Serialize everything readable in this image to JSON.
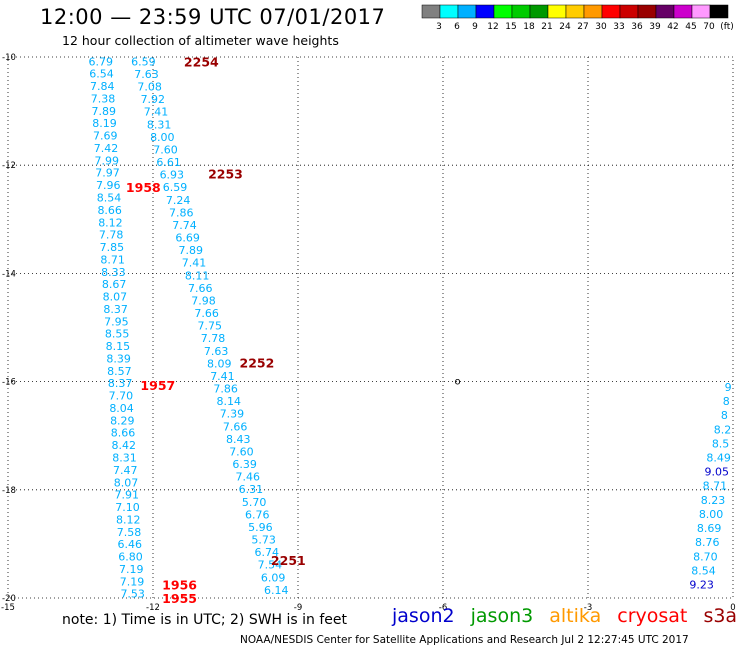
{
  "header": {
    "title": "12:00 — 23:59 UTC 07/01/2017",
    "subtitle": "12 hour collection of altimeter wave heights"
  },
  "footer": {
    "note": "note: 1) Time is in UTC; 2) SWH is in feet",
    "credit": "NOAA/NESDIS Center for Satellite Applications and Research   Jul  2 12:27:45 UTC 2017"
  },
  "satellites": [
    {
      "name": "jason2",
      "color": "#0000cc"
    },
    {
      "name": "jason3",
      "color": "#009900"
    },
    {
      "name": "altika",
      "color": "#ff9900"
    },
    {
      "name": "cryosat",
      "color": "#ff0000"
    },
    {
      "name": "s3a",
      "color": "#990000"
    }
  ],
  "colorbar": {
    "labels": [
      "3",
      "6",
      "9",
      "12",
      "15",
      "18",
      "21",
      "24",
      "27",
      "30",
      "33",
      "36",
      "39",
      "42",
      "45",
      "70",
      "(ft)"
    ],
    "colors": [
      "#808080",
      "#00ffff",
      "#00b0ff",
      "#0000ff",
      "#00ff00",
      "#00cc00",
      "#009900",
      "#ffff00",
      "#ffcc00",
      "#ff9900",
      "#ff0000",
      "#cc0000",
      "#990000",
      "#660066",
      "#cc00cc",
      "#ff99ff",
      "#000000"
    ]
  },
  "chart_data": {
    "type": "scatter",
    "xlim": [
      -15,
      0
    ],
    "ylim": [
      -20,
      -10
    ],
    "xticks": [
      -15,
      -12,
      -9,
      -6,
      -3,
      0
    ],
    "yticks": [
      -10,
      -12,
      -14,
      -16,
      -18,
      -20
    ],
    "grid": "dotted",
    "extra_marker": {
      "x": -5.7,
      "y": -16.0,
      "text": "o"
    },
    "time_labels": [
      {
        "text": "2254",
        "x": -11.0,
        "y": -10.08,
        "color": "#990000"
      },
      {
        "text": "2253",
        "x": -10.5,
        "y": -12.15,
        "color": "#990000"
      },
      {
        "text": "1958",
        "x": -12.2,
        "y": -12.4,
        "color": "#ff0000"
      },
      {
        "text": "2252",
        "x": -9.85,
        "y": -15.65,
        "color": "#990000"
      },
      {
        "text": "1957",
        "x": -11.9,
        "y": -16.06,
        "color": "#ff0000"
      },
      {
        "text": "2251",
        "x": -9.2,
        "y": -19.3,
        "color": "#990000"
      },
      {
        "text": "1956",
        "x": -11.45,
        "y": -19.75,
        "color": "#ff0000"
      },
      {
        "text": "1955",
        "x": -11.45,
        "y": -20.0,
        "color": "#ff0000"
      }
    ],
    "series": [
      {
        "name": "cryosat",
        "color": "#00b0ff",
        "x0": -13.08,
        "y0": -10.08,
        "x1": -12.42,
        "y1": -19.92,
        "values": [
          "6.79",
          "6.54",
          "7.84",
          "7.38",
          "7.89",
          "8.19",
          "7.69",
          "7.42",
          "7.99",
          "7.97",
          "7.96",
          "8.54",
          "8.66",
          "8.12",
          "7.78",
          "7.85",
          "8.71",
          "8.33",
          "8.67",
          "8.07",
          "8.37",
          "7.95",
          "8.55",
          "8.15",
          "8.39",
          "8.57",
          "8.37",
          "7.70",
          "8.04",
          "8.29",
          "8.66",
          "8.42",
          "8.31",
          "7.47",
          "8.07",
          "7.91",
          "7.10",
          "8.12",
          "7.58",
          "6.46",
          "6.80",
          "7.19",
          "7.19",
          "7.53"
        ]
      },
      {
        "name": "s3a",
        "color": "#00b0ff",
        "x0": -12.2,
        "y0": -10.08,
        "x1": -9.45,
        "y1": -19.85,
        "values": [
          "6.59",
          "7.63",
          "7.08",
          "7.92",
          "7.41",
          "8.31",
          "8.00",
          "7.60",
          "6.61",
          "6.93",
          "6.59",
          "7.24",
          "7.86",
          "7.74",
          "6.69",
          "7.89",
          "7.41",
          "8.11",
          "7.66",
          "7.98",
          "7.66",
          "7.75",
          "7.78",
          "7.63",
          "8.09",
          "7.41",
          "7.86",
          "8.14",
          "7.39",
          "7.66",
          "8.43",
          "7.60",
          "6.39",
          "7.46",
          "6.31",
          "5.70",
          "6.76",
          "5.96",
          "5.73",
          "6.74",
          "7.54",
          "6.09",
          "6.14"
        ]
      },
      {
        "name": "jason2",
        "color": "#0000cc",
        "x0": -0.1,
        "y0": -16.1,
        "x1": -0.65,
        "y1": -19.75,
        "values": [
          "9",
          "8",
          "8",
          "8.2",
          "8.5",
          "8.49",
          "9.05",
          "8.71",
          "8.23",
          "8.00",
          "8.69",
          "8.76",
          "8.70",
          "8.54",
          "9.23"
        ],
        "colors": [
          "#00b0ff",
          "#00b0ff",
          "#00b0ff",
          "#00b0ff",
          "#00b0ff",
          "#00b0ff",
          "#0000cc",
          "#00b0ff",
          "#00b0ff",
          "#00b0ff",
          "#00b0ff",
          "#00b0ff",
          "#00b0ff",
          "#00b0ff",
          "#0000cc"
        ]
      }
    ]
  }
}
